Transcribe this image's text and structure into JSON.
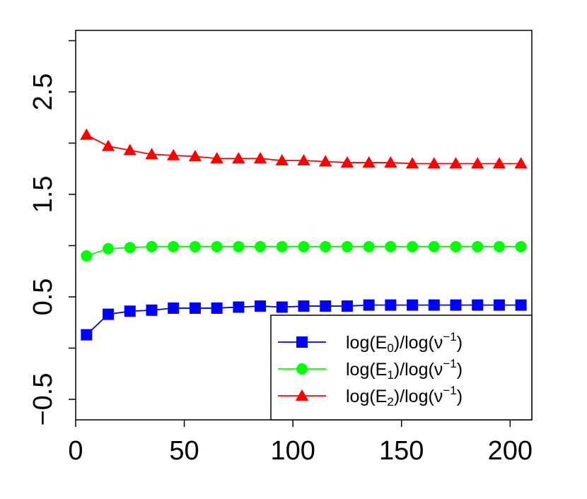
{
  "chart_data": {
    "type": "line",
    "title": "",
    "xlabel": "",
    "ylabel": "",
    "xlim": [
      0,
      210
    ],
    "ylim": [
      -0.7,
      3.1
    ],
    "xticks": [
      0,
      50,
      100,
      150,
      200
    ],
    "yticks": [
      -0.5,
      0,
      0.5,
      1,
      1.5,
      2,
      2.5,
      3
    ],
    "ytick_labels": {
      "-0.5": "-0.5",
      "0.5": "0.5",
      "1.5": "1.5",
      "2.5": "2.5"
    },
    "legend_position": "bottom-right",
    "x": [
      5,
      15,
      25,
      35,
      45,
      55,
      65,
      75,
      85,
      95,
      105,
      115,
      125,
      135,
      145,
      155,
      165,
      175,
      185,
      195,
      205
    ],
    "series": [
      {
        "name": "log(E0)/log(ν-1)",
        "label_parts": {
          "pre": "log(E",
          "sub": "0",
          "mid": ")/log(ν",
          "sup": "−1",
          "post": ")"
        },
        "color": "#0000ff",
        "marker": "square",
        "values": [
          0.13,
          0.33,
          0.36,
          0.37,
          0.39,
          0.39,
          0.39,
          0.4,
          0.41,
          0.4,
          0.41,
          0.41,
          0.41,
          0.42,
          0.42,
          0.42,
          0.42,
          0.42,
          0.42,
          0.42,
          0.42
        ]
      },
      {
        "name": "log(E1)/log(ν-1)",
        "label_parts": {
          "pre": "log(E",
          "sub": "1",
          "mid": ")/log(ν",
          "sup": "−1",
          "post": ")"
        },
        "color": "#00ff00",
        "marker": "circle",
        "values": [
          0.9,
          0.97,
          0.98,
          0.99,
          0.99,
          0.99,
          0.99,
          0.99,
          0.99,
          0.99,
          0.99,
          0.99,
          0.99,
          0.99,
          0.99,
          0.99,
          0.99,
          0.99,
          0.99,
          0.99,
          0.99
        ]
      },
      {
        "name": "log(E2)/log(ν-1)",
        "label_parts": {
          "pre": "log(E",
          "sub": "2",
          "mid": ")/log(ν",
          "sup": "−1",
          "post": ")"
        },
        "color": "#ff0000",
        "marker": "triangle",
        "values": [
          2.08,
          1.97,
          1.93,
          1.89,
          1.88,
          1.87,
          1.85,
          1.85,
          1.85,
          1.83,
          1.83,
          1.82,
          1.81,
          1.81,
          1.81,
          1.8,
          1.8,
          1.8,
          1.8,
          1.8,
          1.8
        ]
      }
    ]
  }
}
